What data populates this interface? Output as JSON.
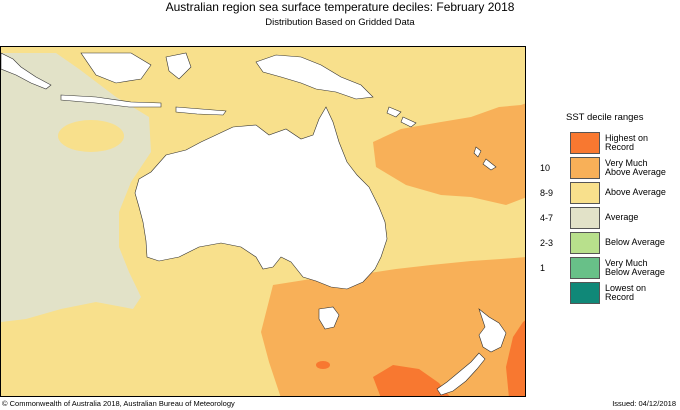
{
  "header": {
    "title": "Australian region sea surface temperature deciles:  February 2018",
    "subtitle": "Distribution Based on Gridded Data"
  },
  "legend": {
    "title": "SST decile ranges",
    "items": [
      {
        "rank": "",
        "label_line1": "Highest on",
        "label_line2": "Record",
        "color": "#f87830"
      },
      {
        "rank": "10",
        "label_line1": "Very Much",
        "label_line2": "Above Average",
        "color": "#f8b058"
      },
      {
        "rank": "8-9",
        "label_line1": "Above Average",
        "label_line2": "",
        "color": "#f8e08c"
      },
      {
        "rank": "4-7",
        "label_line1": "Average",
        "label_line2": "",
        "color": "#e2e2c8"
      },
      {
        "rank": "2-3",
        "label_line1": "Below Average",
        "label_line2": "",
        "color": "#b8e08c"
      },
      {
        "rank": "1",
        "label_line1": "Very Much",
        "label_line2": "Below Average",
        "color": "#68c088"
      },
      {
        "rank": "",
        "label_line1": "Lowest on",
        "label_line2": "Record",
        "color": "#108878"
      }
    ]
  },
  "footer": {
    "copyright": "© Commonwealth of Australia 2018, Australian Bureau of Meteorology",
    "issued": "Issued: 04/12/2018"
  },
  "colors": {
    "land": "#ffffff",
    "average": "#e2e2c8",
    "above_average": "#f8e08c",
    "very_much_above": "#f8b058",
    "highest_on_record": "#f87830"
  }
}
